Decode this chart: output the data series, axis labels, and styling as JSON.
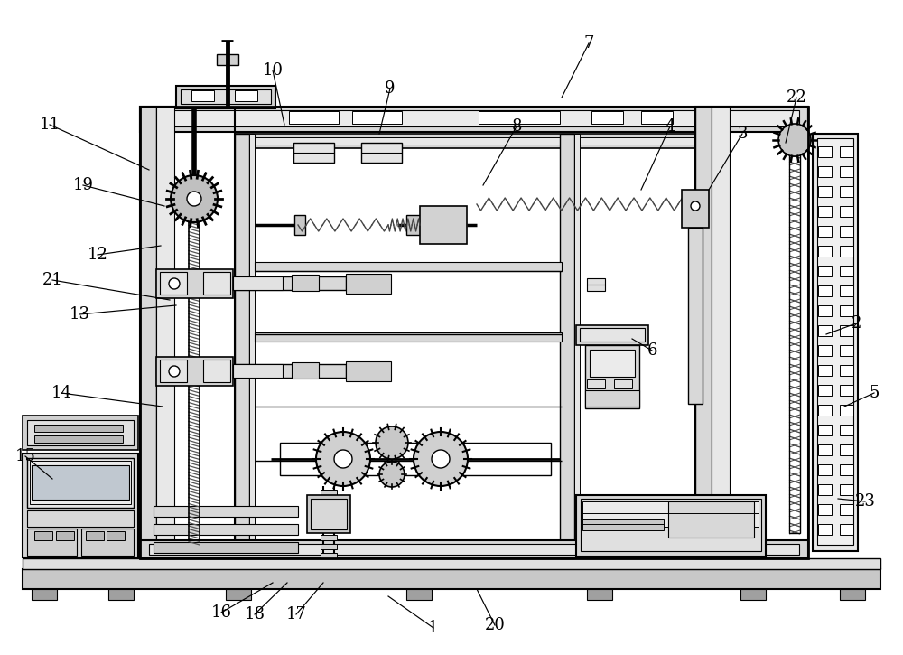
{
  "bg": "#ffffff",
  "lc": "#000000",
  "gray1": "#e8e8e8",
  "gray2": "#d0d0d0",
  "gray3": "#b8b8b8",
  "labels_fs": 13,
  "ann_lines": [
    [
      "1",
      480,
      695,
      430,
      660
    ],
    [
      "2",
      948,
      358,
      915,
      370
    ],
    [
      "3",
      822,
      148,
      785,
      210
    ],
    [
      "4",
      742,
      140,
      710,
      210
    ],
    [
      "5",
      968,
      435,
      935,
      450
    ],
    [
      "6",
      722,
      388,
      700,
      375
    ],
    [
      "7",
      652,
      48,
      622,
      108
    ],
    [
      "8",
      572,
      140,
      535,
      205
    ],
    [
      "9",
      432,
      98,
      420,
      148
    ],
    [
      "10",
      302,
      78,
      315,
      138
    ],
    [
      "11",
      55,
      138,
      165,
      188
    ],
    [
      "12",
      108,
      282,
      178,
      272
    ],
    [
      "13",
      88,
      348,
      195,
      338
    ],
    [
      "14",
      68,
      435,
      180,
      450
    ],
    [
      "15",
      28,
      505,
      58,
      530
    ],
    [
      "16",
      245,
      678,
      302,
      645
    ],
    [
      "17",
      328,
      680,
      358,
      645
    ],
    [
      "18",
      282,
      680,
      318,
      645
    ],
    [
      "19",
      92,
      205,
      182,
      228
    ],
    [
      "20",
      548,
      692,
      528,
      652
    ],
    [
      "21",
      58,
      310,
      188,
      332
    ],
    [
      "22",
      882,
      108,
      870,
      158
    ],
    [
      "23",
      958,
      555,
      928,
      552
    ]
  ]
}
